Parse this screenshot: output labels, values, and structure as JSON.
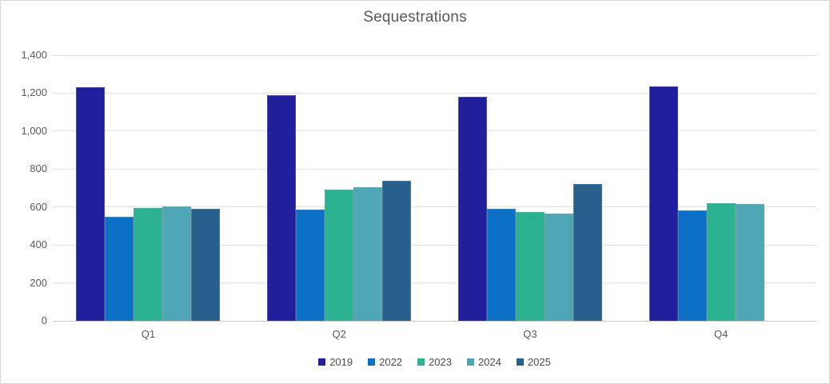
{
  "frame": {
    "background": "#ffffff",
    "border_color": "#d6d6d6"
  },
  "colors": {
    "title_text": "#595959",
    "axis_text": "#595959",
    "legend_text": "#4a4a4a",
    "gridline": "#e2e2e2",
    "axis_line": "#c9c9c9"
  },
  "chart_data": {
    "type": "bar",
    "title": "Sequestrations",
    "xlabel": "",
    "ylabel": "",
    "categories": [
      "Q1",
      "Q2",
      "Q3",
      "Q4"
    ],
    "series": [
      {
        "name": "2019",
        "color": "#211e9b",
        "values": [
          1230,
          1190,
          1180,
          1235
        ]
      },
      {
        "name": "2022",
        "color": "#0b70c6",
        "values": [
          550,
          585,
          590,
          580
        ]
      },
      {
        "name": "2023",
        "color": "#2cb191",
        "values": [
          595,
          690,
          575,
          620
        ]
      },
      {
        "name": "2024",
        "color": "#4fa7b6",
        "values": [
          605,
          705,
          565,
          615
        ]
      },
      {
        "name": "2025",
        "color": "#275f8d",
        "values": [
          590,
          740,
          720,
          null
        ]
      }
    ],
    "ylim": [
      0,
      1400
    ],
    "y_ticks": [
      {
        "value": 0,
        "label": "0"
      },
      {
        "value": 200,
        "label": "200"
      },
      {
        "value": 400,
        "label": "400"
      },
      {
        "value": 600,
        "label": "600"
      },
      {
        "value": 800,
        "label": "800"
      },
      {
        "value": 1000,
        "label": "1,000"
      },
      {
        "value": 1200,
        "label": "1,200"
      },
      {
        "value": 1400,
        "label": "1,400"
      }
    ],
    "grid": true,
    "legend_position": "bottom",
    "legend_entries": [
      "2019",
      "2022",
      "2023",
      "2024",
      "2025"
    ]
  }
}
